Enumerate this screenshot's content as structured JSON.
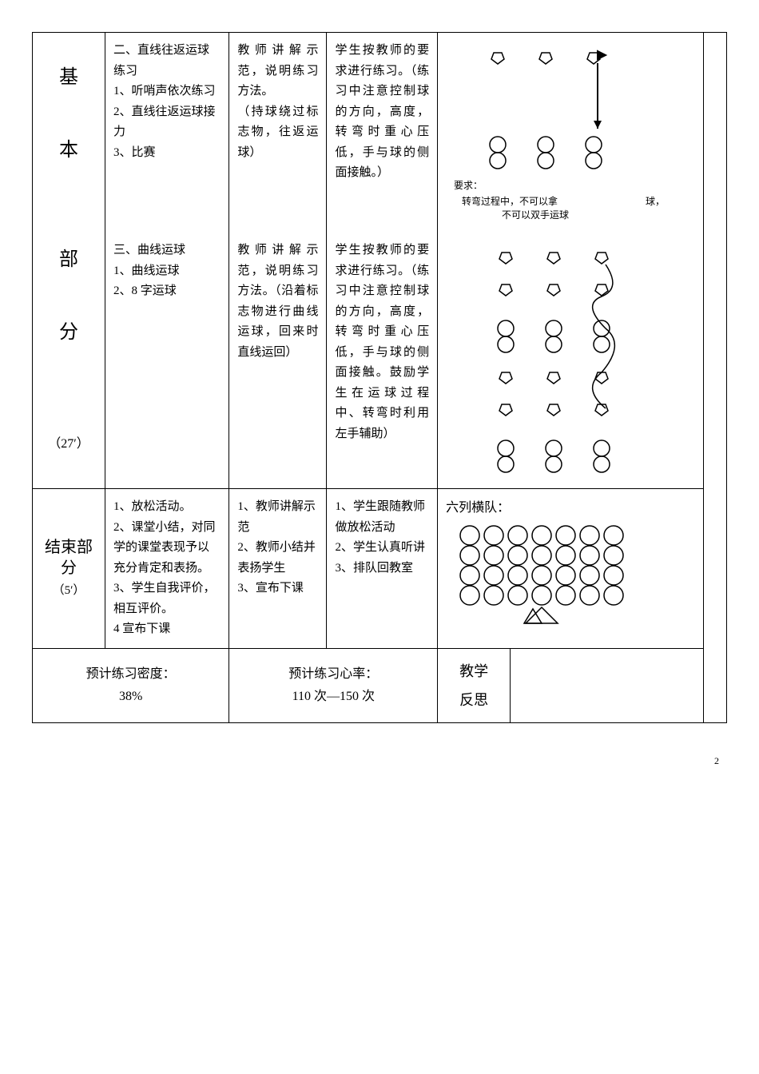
{
  "col_widths": [
    "82px",
    "140px",
    "110px",
    "125px",
    "300px",
    "26px"
  ],
  "rows": {
    "r1": {
      "section": "基\n\n本",
      "c1": "二、直线往返运球练习\n1、听哨声依次练习\n2、直线往返运球接力\n3、比赛",
      "c2": "教师讲解示范，说明练习方法。\n（持球绕过标志物，往返运球）",
      "c3": "学生按教师的要求进行练习。（练习中注意控制球的方向，高度，转弯时重心压低，手与球的侧面接触。）",
      "note_label": "要求：",
      "note_line1": "转弯过程中，不可以拿",
      "note_line2": "球，",
      "note_line3": "不可以双手运球"
    },
    "r2": {
      "section": "部\n\n分\n\n\n（27′）",
      "c1": "三、曲线运球\n1、曲线运球\n2、8 字运球",
      "c2": "教师讲解示范，说明练习方法。（沿着标志物进行曲线运球，回来时直线运回）",
      "c3": "学生按教师的要求进行练习。（练习中注意控制球的方向，高度，转弯时重心压低，手与球的侧面接触。鼓励学生在运球过程中、转弯时利用左手辅助）"
    },
    "r3": {
      "section": "结束部分\n（5′）",
      "c1": "1、放松活动。\n2、课堂小结，对同学的课堂表现予以充分肯定和表扬。\n3、学生自我评价，相互评价。\n4 宣布下课",
      "c2": "1、教师讲解示范\n2、教师小结并表扬学生\n3、宣布下课",
      "c3": "1、学生跟随教师做放松活动\n2、学生认真听讲\n3、排队回教室",
      "c4": "六列横队："
    },
    "r4": {
      "c0": "预计练习密度：\n38%",
      "c1": "预计练习心率：\n110 次—150 次",
      "c2": "教学\n反思"
    }
  },
  "page_number": "2",
  "colors": {
    "stroke": "#000000",
    "bg": "#ffffff"
  }
}
